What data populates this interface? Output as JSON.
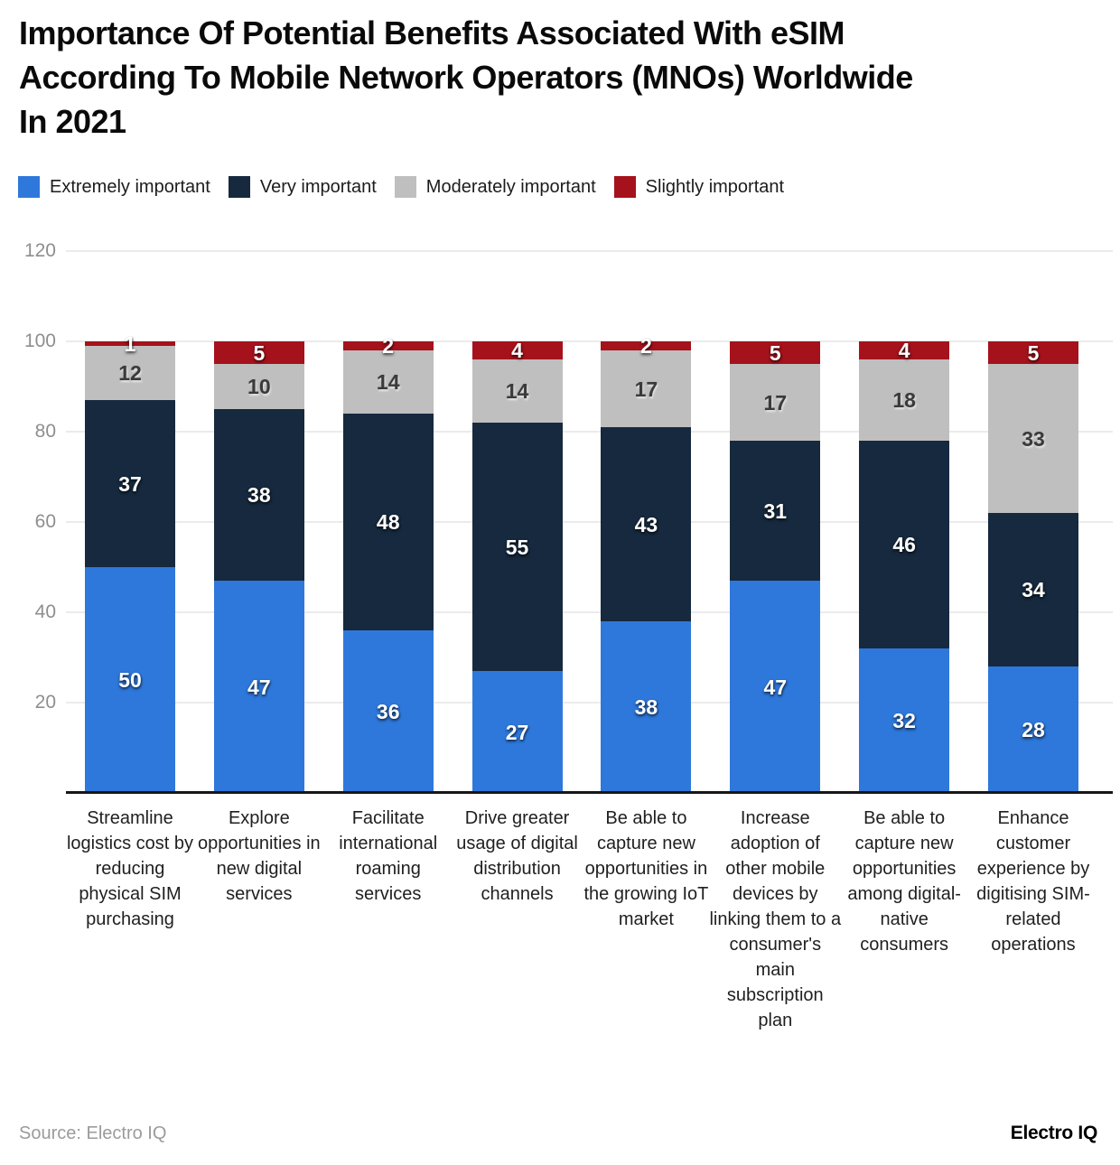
{
  "title": {
    "lines": [
      "Importance Of Potential Benefits Associated With eSIM",
      "According To Mobile Network Operators (MNOs) Worldwide",
      "In 2021"
    ]
  },
  "footer": {
    "source": "Source: Electro IQ",
    "brand": "Electro IQ"
  },
  "chart_data": {
    "type": "bar",
    "stacked": true,
    "title": "Importance Of Potential Benefits Associated With eSIM According To Mobile Network Operators (MNOs) Worldwide In 2021",
    "legend_position": "top",
    "grid": true,
    "ylim": [
      0,
      120
    ],
    "yticks": [
      20,
      40,
      60,
      80,
      100,
      120
    ],
    "categories": [
      "Streamline logistics cost by reducing physical SIM purchasing",
      "Explore opportunities in new digital services",
      "Facilitate international roaming services",
      "Drive greater usage of digital distribution channels",
      "Be able to capture new opportunities in the growing IoT market",
      "Increase adoption of other mobile devices by linking them to a consumer's main subscription plan",
      "Be able to capture new opportunities among digital-native consumers",
      "Enhance customer experience by digitising SIM-related operations"
    ],
    "series": [
      {
        "name": "Extremely important",
        "color": "#2E78DB",
        "values": [
          50,
          47,
          36,
          27,
          38,
          47,
          32,
          28
        ]
      },
      {
        "name": "Very important",
        "color": "#16293E",
        "values": [
          37,
          38,
          48,
          55,
          43,
          31,
          46,
          34
        ]
      },
      {
        "name": "Moderately important",
        "color": "#BFBFBF",
        "values": [
          12,
          10,
          14,
          14,
          17,
          17,
          18,
          33
        ]
      },
      {
        "name": "Slightly important",
        "color": "#A5121B",
        "values": [
          1,
          5,
          2,
          4,
          2,
          5,
          4,
          5
        ]
      }
    ]
  }
}
